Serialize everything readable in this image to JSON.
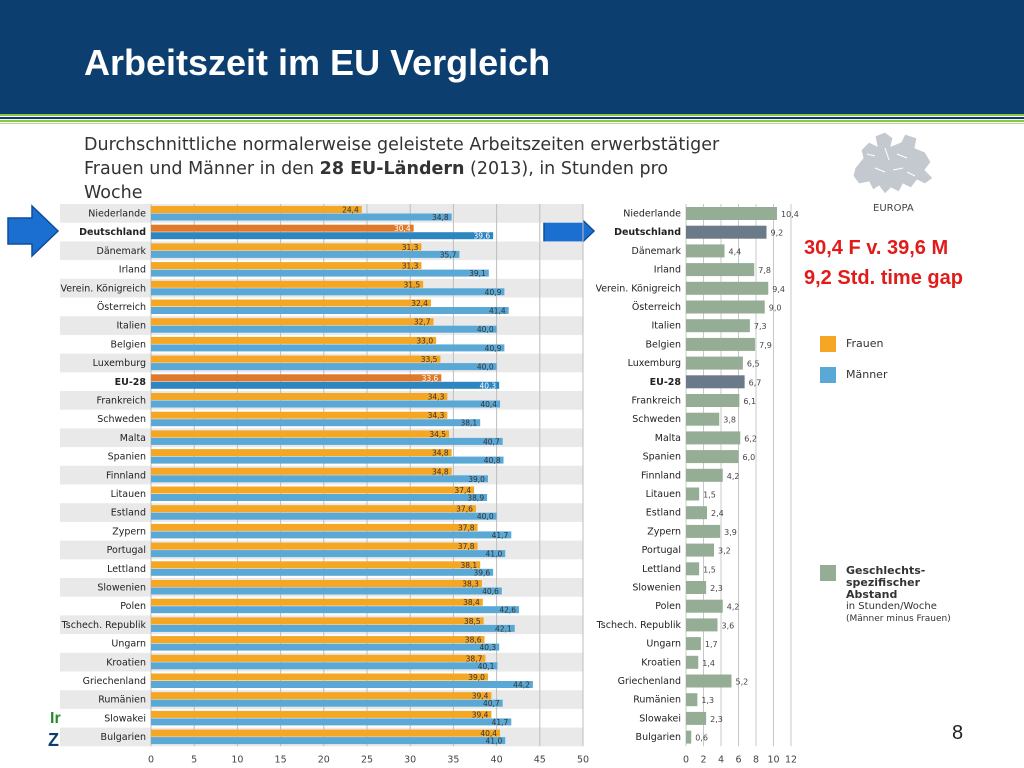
{
  "slide": {
    "title": "Arbeitszeit im EU Vergleich",
    "subtitle_pre": "Durchschnittliche normalerweise geleistete Arbeitszeiten erwerbstätiger Frauen und Männer in den ",
    "subtitle_bold": "28 EU-Ländern",
    "subtitle_post": " (2013), in Stunden pro Woche",
    "europa_label": "EUROPA",
    "callout_line1": "30,4 F v. 39,6 M",
    "callout_line2": "9,2 Std. time gap",
    "page_number": "8",
    "footer_fragment_1": "Ir",
    "footer_fragment_2": "Z"
  },
  "legend": {
    "frauen": "Frauen",
    "maenner": "Männer",
    "gap_line1": "Geschlechts-spezifischer Abstand",
    "gap_line2": "in Stunden/Woche",
    "gap_line3": "(Männer minus Frauen)"
  },
  "colors": {
    "header_bg": "#0c3e70",
    "frauen": "#f5a623",
    "maenner": "#5aa8d6",
    "highlight_frauen": "#e07a2a",
    "highlight_maenner": "#2e86c1",
    "gap": "#95ad95",
    "gap_highlight": "#6b7a88",
    "callout": "#e21a1a",
    "arrow": "#1a6fd1"
  },
  "icons": [
    "europe-map-icon",
    "arrow-right-icon"
  ],
  "chart_data": [
    {
      "type": "bar",
      "orientation": "horizontal",
      "categories": [
        "Niederlande",
        "Deutschland",
        "Dänemark",
        "Irland",
        "Verein. Königreich",
        "Österreich",
        "Italien",
        "Belgien",
        "Luxemburg",
        "EU-28",
        "Frankreich",
        "Schweden",
        "Malta",
        "Spanien",
        "Finnland",
        "Litauen",
        "Estland",
        "Zypern",
        "Portugal",
        "Lettland",
        "Slowenien",
        "Polen",
        "Tschech. Republik",
        "Ungarn",
        "Kroatien",
        "Griechenland",
        "Rumänien",
        "Slowakei",
        "Bulgarien"
      ],
      "highlighted": [
        "Deutschland",
        "EU-28"
      ],
      "series": [
        {
          "name": "Frauen",
          "values": [
            24.4,
            30.4,
            31.3,
            31.3,
            31.5,
            32.4,
            32.7,
            33.0,
            33.5,
            33.6,
            34.3,
            34.3,
            34.5,
            34.8,
            34.8,
            37.4,
            37.6,
            37.8,
            37.8,
            38.1,
            38.3,
            38.4,
            38.5,
            38.6,
            38.7,
            39.0,
            39.4,
            39.4,
            40.4
          ]
        },
        {
          "name": "Männer",
          "values": [
            34.8,
            39.6,
            35.7,
            39.1,
            40.9,
            41.4,
            40.0,
            40.9,
            40.0,
            40.3,
            40.4,
            38.1,
            40.7,
            40.8,
            39.0,
            38.9,
            40.0,
            41.7,
            41.0,
            39.6,
            40.6,
            42.6,
            42.1,
            40.3,
            40.1,
            44.2,
            40.7,
            41.7,
            41.0
          ]
        }
      ],
      "value_labels_frauen": [
        "24,4",
        "30,4",
        "31,3",
        "31,3",
        "31,5",
        "32,4",
        "32,7",
        "33,0",
        "33,5",
        "33,6",
        "34,3",
        "34,3",
        "34,5",
        "34,8",
        "34,8",
        "37,4",
        "37,6",
        "37,8",
        "37,8",
        "38,1",
        "38,3",
        "38,4",
        "38,5",
        "38,6",
        "38,7",
        "39,0",
        "39,4",
        "39,4",
        "40,4"
      ],
      "value_labels_maenner": [
        "34,8",
        "39,6",
        "35,7",
        "39,1",
        "40,9",
        "41,4",
        "40,0",
        "40,9",
        "40,0",
        "40,3",
        "40,4",
        "38,1",
        "40,7",
        "40,8",
        "39,0",
        "38,9",
        "40,0",
        "41,7",
        "41,0",
        "39,6",
        "40,6",
        "42,6",
        "42,1",
        "40,3",
        "40,1",
        "44,2",
        "40,7",
        "41,7",
        "41,0"
      ],
      "xlim": [
        0,
        50
      ],
      "x_ticks": [
        "0",
        "5",
        "10",
        "15",
        "20",
        "25",
        "30",
        "35",
        "40",
        "45",
        "50"
      ],
      "grid": true
    },
    {
      "type": "bar",
      "orientation": "horizontal",
      "categories": [
        "Niederlande",
        "Deutschland",
        "Dänemark",
        "Irland",
        "Verein. Königreich",
        "Österreich",
        "Italien",
        "Belgien",
        "Luxemburg",
        "EU-28",
        "Frankreich",
        "Schweden",
        "Malta",
        "Spanien",
        "Finnland",
        "Litauen",
        "Estland",
        "Zypern",
        "Portugal",
        "Lettland",
        "Slowenien",
        "Polen",
        "Tschech. Republik",
        "Ungarn",
        "Kroatien",
        "Griechenland",
        "Rumänien",
        "Slowakei",
        "Bulgarien"
      ],
      "highlighted": [
        "Deutschland",
        "EU-28"
      ],
      "series": [
        {
          "name": "Geschlechts-spezifischer Abstand",
          "values": [
            10.4,
            9.2,
            4.4,
            7.8,
            9.4,
            9.0,
            7.3,
            7.9,
            6.5,
            6.7,
            6.1,
            3.8,
            6.2,
            6.0,
            4.2,
            1.5,
            2.4,
            3.9,
            3.2,
            1.5,
            2.3,
            4.2,
            3.6,
            1.7,
            1.4,
            5.2,
            1.3,
            2.3,
            0.6
          ]
        }
      ],
      "value_labels": [
        "10,4",
        "9,2",
        "4,4",
        "7,8",
        "9,4",
        "9,0",
        "7,3",
        "7,9",
        "6,5",
        "6,7",
        "6,1",
        "3,8",
        "6,2",
        "6,0",
        "4,2",
        "1,5",
        "2,4",
        "3,9",
        "3,2",
        "1,5",
        "2,3",
        "4,2",
        "3,6",
        "1,7",
        "1,4",
        "5,2",
        "1,3",
        "2,3",
        "0,6"
      ],
      "xlim": [
        0,
        12
      ],
      "x_ticks": [
        "0",
        "2",
        "4",
        "6",
        "8",
        "10",
        "12"
      ],
      "grid": true
    }
  ]
}
